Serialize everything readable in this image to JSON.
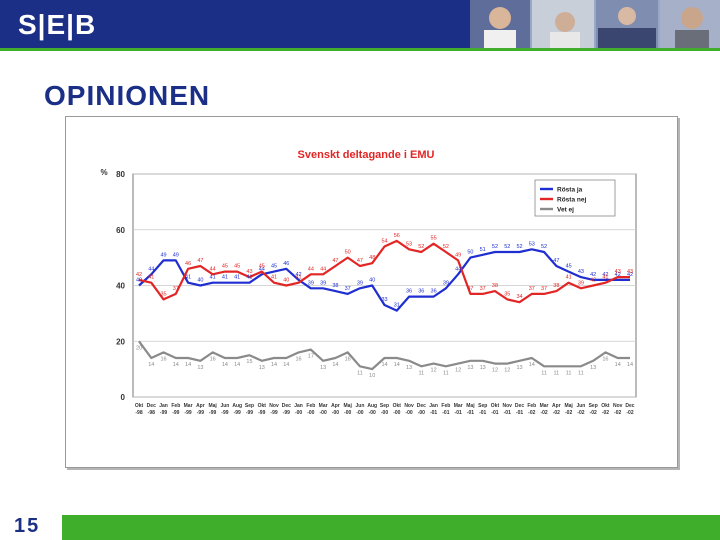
{
  "header": {
    "logo_text": "S|E|B"
  },
  "slide": {
    "title": "OPINIONEN",
    "page_number": "15"
  },
  "colors": {
    "brand_blue": "#1b2f86",
    "brand_green": "#3fae2a",
    "series_ja": "#1f2ed0",
    "series_nej": "#e22525",
    "series_vet": "#8a8a8a"
  },
  "chart_data": {
    "type": "line",
    "title": "Svenskt deltagande i EMU",
    "ylabel": "%",
    "ylim": [
      0,
      80
    ],
    "yticks": [
      0,
      20,
      40,
      60,
      80
    ],
    "grid": true,
    "legend_position": "top-right",
    "categories": [
      "Okt -98",
      "Dec -98",
      "Jan -99",
      "Feb -99",
      "Mar -99",
      "Apr -99",
      "Maj -99",
      "Jun -99",
      "Aug -99",
      "Sep -99",
      "Okt -99",
      "Nov -99",
      "Dec -99",
      "Jan -00",
      "Feb -00",
      "Mar -00",
      "Apr -00",
      "Maj -00",
      "Jun -00",
      "Aug -00",
      "Sep -00",
      "Okt -00",
      "Nov -00",
      "Dec -00",
      "Jan -01",
      "Feb -01",
      "Mar -01",
      "Maj -01",
      "Sep -01",
      "Okt -01",
      "Nov -01",
      "Dec -01",
      "Feb -02",
      "Mar -02",
      "Apr -02",
      "Maj -02",
      "Jun -02",
      "Sep -02",
      "Okt -02",
      "Nov -02",
      "Dec -02"
    ],
    "category_labels": [
      [
        "Okt",
        "-98"
      ],
      [
        "Dec",
        "-98"
      ],
      [
        "Jan",
        "-99"
      ],
      [
        "Feb",
        "-99"
      ],
      [
        "Mar",
        "-99"
      ],
      [
        "Apr",
        "-99"
      ],
      [
        "Maj",
        "-99"
      ],
      [
        "Jun",
        "-99"
      ],
      [
        "Aug",
        "-99"
      ],
      [
        "Sep",
        "-99"
      ],
      [
        "Okt",
        "-99"
      ],
      [
        "Nov",
        "-99"
      ],
      [
        "Dec",
        "-99"
      ],
      [
        "Jan",
        "-00"
      ],
      [
        "Feb",
        "-00"
      ],
      [
        "Mar",
        "-00"
      ],
      [
        "Apr",
        "-00"
      ],
      [
        "Maj",
        "-00"
      ],
      [
        "Jun",
        "-00"
      ],
      [
        "Aug",
        "-00"
      ],
      [
        "Sep",
        "-00"
      ],
      [
        "Okt",
        "-00"
      ],
      [
        "Nov",
        "-00"
      ],
      [
        "Dec",
        "-00"
      ],
      [
        "Jan",
        "-01"
      ],
      [
        "Feb",
        "-01"
      ],
      [
        "Mar",
        "-01"
      ],
      [
        "Maj",
        "-01"
      ],
      [
        "Sep",
        "-01"
      ],
      [
        "Okt",
        "-01"
      ],
      [
        "Nov",
        "-01"
      ],
      [
        "Dec",
        "-01"
      ],
      [
        "Feb",
        "-02"
      ],
      [
        "Mar",
        "-02"
      ],
      [
        "Apr",
        "-02"
      ],
      [
        "Maj",
        "-02"
      ],
      [
        "Jun",
        "-02"
      ],
      [
        "Sep",
        "-02"
      ],
      [
        "Okt",
        "-02"
      ],
      [
        "Nov",
        "-02"
      ],
      [
        "Dec",
        "-02"
      ]
    ],
    "series": [
      {
        "name": "Rösta ja",
        "color": "#1f2ed0",
        "values": [
          40,
          44,
          49,
          49,
          41,
          40,
          41,
          41,
          41,
          41,
          44,
          45,
          46,
          42,
          39,
          39,
          38,
          37,
          39,
          40,
          33,
          31,
          36,
          36,
          36,
          39,
          44,
          50,
          51,
          52,
          52,
          52,
          53,
          52,
          47,
          45,
          43,
          42,
          42,
          42,
          42
        ]
      },
      {
        "name": "Rösta nej",
        "color": "#e22525",
        "values": [
          42,
          41,
          35,
          37,
          46,
          47,
          44,
          45,
          45,
          43,
          45,
          41,
          40,
          41,
          44,
          44,
          47,
          50,
          47,
          48,
          54,
          56,
          53,
          52,
          55,
          52,
          49,
          37,
          37,
          38,
          35,
          34,
          37,
          37,
          38,
          41,
          39,
          40,
          41,
          43,
          43
        ]
      },
      {
        "name": "Vet ej",
        "color": "#8a8a8a",
        "values": [
          20,
          14,
          16,
          14,
          14,
          13,
          16,
          14,
          14,
          15,
          13,
          14,
          14,
          16,
          17,
          13,
          14,
          16,
          11,
          10,
          14,
          14,
          13,
          11,
          12,
          11,
          12,
          13,
          13,
          12,
          12,
          13,
          14,
          11,
          11,
          11,
          11,
          13,
          16,
          14,
          14
        ]
      }
    ]
  }
}
